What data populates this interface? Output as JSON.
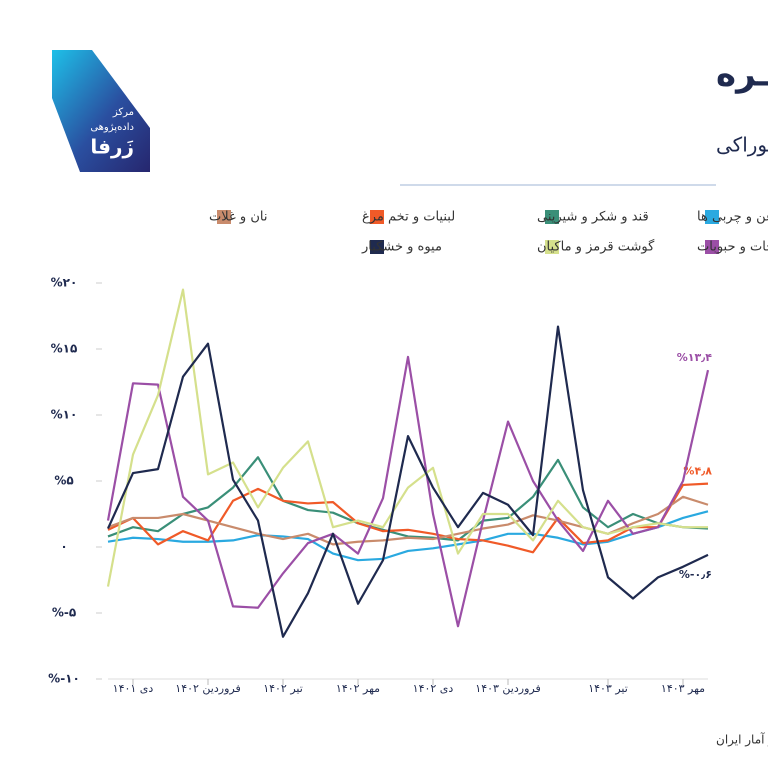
{
  "logo": {
    "lines": [
      "مرکز",
      "داده‌پژوهی",
      "زَرفا"
    ]
  },
  "source": "*منبع: مرکز آمار ایران",
  "chart_data": {
    "type": "line",
    "title": "تـورم روی سفــره",
    "subtitle": "تغییرات ماهانه قیمت اقلام خوراکی",
    "categories": [
      null,
      "دی ۱۴۰۱",
      null,
      null,
      "فروردین ۱۴۰۲",
      null,
      null,
      "تیر ۱۴۰۲",
      null,
      null,
      "مهر ۱۴۰۲",
      null,
      null,
      "دی ۱۴۰۲",
      null,
      null,
      "فروردین ۱۴۰۳",
      null,
      null,
      null,
      "تیر ۱۴۰۳",
      null,
      null,
      "مهر ۱۴۰۳",
      null
    ],
    "ylim": [
      -10,
      20
    ],
    "yticks": [
      {
        "value": -10,
        "label": "%-۱۰"
      },
      {
        "value": -5,
        "label": "%-۵"
      },
      {
        "value": 0,
        "label": "۰"
      },
      {
        "value": 5,
        "label": "%۵"
      },
      {
        "value": 10,
        "label": "%۱۰"
      },
      {
        "value": 15,
        "label": "%۱۵"
      },
      {
        "value": 20,
        "label": "%۲۰"
      }
    ],
    "series": [
      {
        "name": "روغن و چربی ها",
        "color": "#2aa9e0",
        "values": [
          0.4,
          0.7,
          0.6,
          0.4,
          0.4,
          0.5,
          0.9,
          0.8,
          0.6,
          -0.5,
          -1.0,
          -0.9,
          -0.3,
          -0.1,
          0.2,
          0.5,
          1.0,
          1.0,
          0.7,
          0.2,
          0.4,
          1.0,
          1.5,
          2.2,
          2.7
        ]
      },
      {
        "name": "قند و شکر و شیرینی",
        "color": "#3a8f78",
        "values": [
          0.8,
          1.5,
          1.2,
          2.5,
          3.0,
          4.5,
          6.8,
          3.5,
          2.8,
          2.6,
          1.8,
          1.3,
          0.8,
          0.7,
          0.5,
          2.0,
          2.2,
          3.8,
          6.6,
          3.0,
          1.5,
          2.5,
          1.8,
          1.5,
          1.4
        ]
      },
      {
        "name": "لبنیات و تخم مرغ",
        "color": "#f05a28",
        "values": [
          1.3,
          2.2,
          0.2,
          1.2,
          0.5,
          3.5,
          4.4,
          3.5,
          3.3,
          3.4,
          1.8,
          1.2,
          1.3,
          1.0,
          0.6,
          0.5,
          0.1,
          -0.4,
          2.2,
          0.3,
          0.5,
          1.5,
          1.5,
          4.7,
          4.8
        ],
        "value_labels": [
          null,
          null,
          null,
          null,
          null,
          null,
          null,
          null,
          null,
          null,
          null,
          null,
          null,
          null,
          null,
          null,
          null,
          null,
          null,
          null,
          null,
          null,
          null,
          null,
          "%۴٫۸"
        ]
      },
      {
        "name": "نان و غلات",
        "color": "#c98b6c",
        "values": [
          1.5,
          2.2,
          2.2,
          2.5,
          2.0,
          1.5,
          1.0,
          0.6,
          1.0,
          0.2,
          0.4,
          0.5,
          0.7,
          0.6,
          1.0,
          1.4,
          1.7,
          2.4,
          2.0,
          1.5,
          1.0,
          1.8,
          2.5,
          3.8,
          3.2
        ]
      },
      {
        "name": "سبزیجات و حبوبات",
        "color": "#9b4fa6",
        "values": [
          2.0,
          12.4,
          12.3,
          3.8,
          2.0,
          -4.5,
          -4.6,
          -2.0,
          0.3,
          1.0,
          -0.5,
          3.7,
          14.4,
          2.5,
          -6.0,
          2.0,
          9.5,
          5.0,
          2.0,
          -0.3,
          3.5,
          1.0,
          1.5,
          5.0,
          13.4
        ],
        "value_labels": [
          null,
          null,
          null,
          null,
          null,
          null,
          null,
          null,
          null,
          null,
          null,
          null,
          null,
          null,
          null,
          null,
          null,
          null,
          null,
          null,
          null,
          null,
          null,
          null,
          "%۱۳٫۴"
        ]
      },
      {
        "name": "گوشت قرمز و ماکیان",
        "color": "#d5e08c",
        "values": [
          -3.0,
          7.0,
          11.5,
          19.5,
          5.5,
          6.4,
          3.0,
          6.0,
          8.0,
          1.5,
          2.0,
          1.5,
          4.5,
          6.0,
          -0.5,
          2.5,
          2.5,
          0.5,
          3.5,
          1.5,
          1.0,
          1.5,
          1.8,
          1.5,
          1.5
        ]
      },
      {
        "name": "میوه و خشکبار",
        "color": "#1f2a4f",
        "values": [
          1.4,
          5.6,
          5.9,
          12.9,
          15.4,
          5.1,
          2.0,
          -6.8,
          -3.5,
          1.0,
          -4.3,
          -1.0,
          8.4,
          4.5,
          1.5,
          4.1,
          3.2,
          0.9,
          16.7,
          4.3,
          -2.3,
          -3.9,
          -2.3,
          -1.5,
          -0.6
        ],
        "value_labels": [
          null,
          null,
          null,
          null,
          null,
          null,
          null,
          null,
          null,
          null,
          null,
          null,
          null,
          null,
          null,
          null,
          null,
          null,
          null,
          null,
          null,
          null,
          null,
          null,
          "%-۰٫۶"
        ]
      }
    ]
  }
}
